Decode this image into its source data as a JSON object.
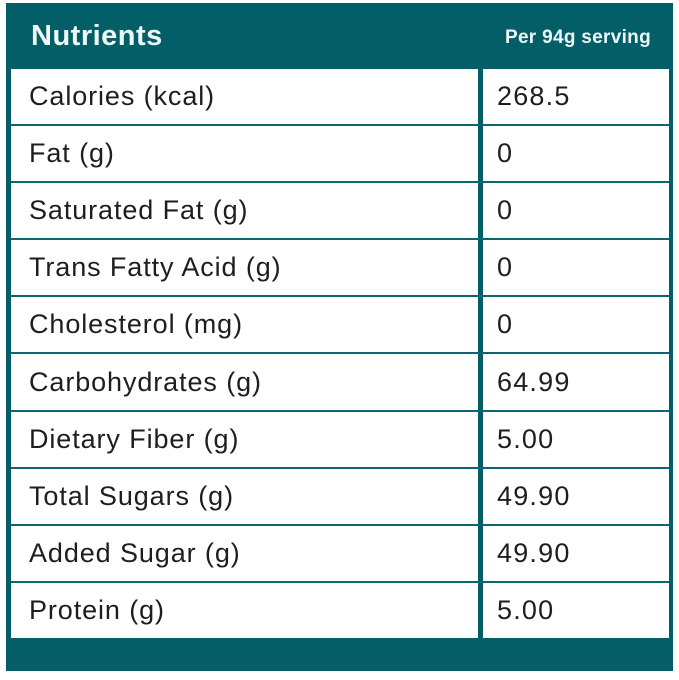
{
  "table": {
    "header": {
      "title": "Nutrients",
      "serving": "Per 94g serving"
    },
    "rows": [
      {
        "label": "Calories (kcal)",
        "value": "268.5"
      },
      {
        "label": "Fat (g)",
        "value": "0"
      },
      {
        "label": "Saturated Fat (g)",
        "value": "0"
      },
      {
        "label": "Trans Fatty Acid (g)",
        "value": "0"
      },
      {
        "label": "Cholesterol (mg)",
        "value": "0"
      },
      {
        "label": "Carbohydrates (g)",
        "value": "64.99"
      },
      {
        "label": "Dietary Fiber (g)",
        "value": "5.00"
      },
      {
        "label": "Total Sugars (g)",
        "value": "49.90"
      },
      {
        "label": "Added Sugar (g)",
        "value": "49.90"
      },
      {
        "label": "Protein (g)",
        "value": "5.00"
      }
    ],
    "colors": {
      "accent_teal": "#045e68",
      "row_text": "#1e1e1e",
      "header_text": "#eef8f7",
      "cell_background": "#ffffff"
    }
  }
}
